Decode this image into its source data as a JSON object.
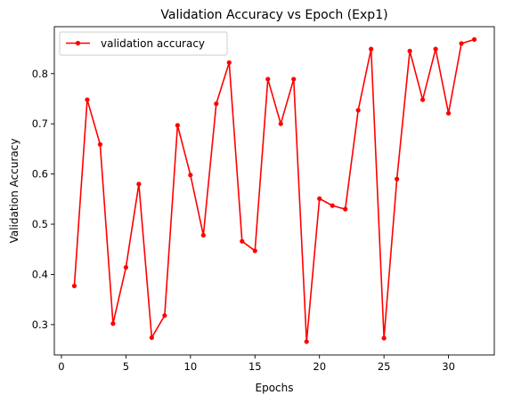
{
  "chart_data": {
    "type": "line",
    "title": "Validation Accuracy vs Epoch (Exp1)",
    "xlabel": "Epochs",
    "ylabel": "Validation Accuracy",
    "xlim": [
      -0.55,
      33.55
    ],
    "ylim": [
      0.2395,
      0.8935
    ],
    "x_ticks": [
      0,
      5,
      10,
      15,
      20,
      25,
      30
    ],
    "y_ticks": [
      0.3,
      0.4,
      0.5,
      0.6,
      0.7,
      0.8
    ],
    "y_tick_labels": [
      "0.3",
      "0.4",
      "0.5",
      "0.6",
      "0.7",
      "0.8"
    ],
    "grid": false,
    "legend_position": "upper-left",
    "series": [
      {
        "name": "validation accuracy",
        "color": "#ff0000",
        "marker": "circle",
        "x": [
          1,
          2,
          3,
          4,
          5,
          6,
          7,
          8,
          9,
          10,
          11,
          12,
          13,
          14,
          15,
          16,
          17,
          18,
          19,
          20,
          21,
          22,
          23,
          24,
          25,
          26,
          27,
          28,
          29,
          30,
          31,
          32
        ],
        "y": [
          0.377,
          0.748,
          0.659,
          0.302,
          0.414,
          0.58,
          0.274,
          0.318,
          0.697,
          0.598,
          0.478,
          0.74,
          0.822,
          0.466,
          0.447,
          0.789,
          0.7,
          0.789,
          0.266,
          0.551,
          0.537,
          0.53,
          0.727,
          0.849,
          0.273,
          0.59,
          0.845,
          0.748,
          0.849,
          0.721,
          0.86,
          0.868
        ]
      }
    ]
  }
}
